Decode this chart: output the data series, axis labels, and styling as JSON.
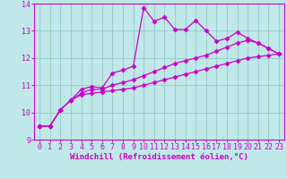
{
  "background_color": "#c0e8e8",
  "grid_color": "#98c8c8",
  "line_color": "#cc00cc",
  "marker": "D",
  "markersize": 2.5,
  "linewidth": 0.9,
  "xlabel": "Windchill (Refroidissement éolien,°C)",
  "xlabel_fontsize": 6.5,
  "tick_fontsize": 6,
  "xlim": [
    -0.5,
    23.5
  ],
  "ylim": [
    9,
    14
  ],
  "yticks": [
    9,
    10,
    11,
    12,
    13,
    14
  ],
  "xticks": [
    0,
    1,
    2,
    3,
    4,
    5,
    6,
    7,
    8,
    9,
    10,
    11,
    12,
    13,
    14,
    15,
    16,
    17,
    18,
    19,
    20,
    21,
    22,
    23
  ],
  "line1_x": [
    0,
    1,
    2,
    3,
    4,
    5,
    6,
    7,
    8,
    9,
    10,
    11,
    12,
    13,
    14,
    15,
    16,
    17,
    18,
    19,
    20,
    21,
    22,
    23
  ],
  "line1_y": [
    9.5,
    9.5,
    10.1,
    10.45,
    10.65,
    10.7,
    10.75,
    10.8,
    10.85,
    10.9,
    11.0,
    11.1,
    11.2,
    11.3,
    11.4,
    11.5,
    11.6,
    11.7,
    11.8,
    11.9,
    12.0,
    12.05,
    12.1,
    12.15
  ],
  "line2_x": [
    0,
    1,
    2,
    3,
    4,
    5,
    6,
    7,
    8,
    9,
    10,
    11,
    12,
    13,
    14,
    15,
    16,
    17,
    18,
    19,
    20,
    21,
    22,
    23
  ],
  "line2_y": [
    9.5,
    9.5,
    10.1,
    10.45,
    10.7,
    10.85,
    10.85,
    11.0,
    11.1,
    11.2,
    11.35,
    11.5,
    11.65,
    11.8,
    11.9,
    12.0,
    12.1,
    12.25,
    12.4,
    12.55,
    12.65,
    12.55,
    12.35,
    12.15
  ],
  "line3_x": [
    0,
    1,
    2,
    3,
    4,
    5,
    6,
    7,
    8,
    9,
    10,
    11,
    12,
    13,
    14,
    15,
    16,
    17,
    18,
    19,
    20,
    21,
    22,
    23
  ],
  "line3_y": [
    9.5,
    9.5,
    10.1,
    10.45,
    10.85,
    10.95,
    10.9,
    11.45,
    11.55,
    11.7,
    13.85,
    13.35,
    13.5,
    13.05,
    13.05,
    13.38,
    13.0,
    12.62,
    12.72,
    12.95,
    12.72,
    12.55,
    12.35,
    12.15
  ]
}
